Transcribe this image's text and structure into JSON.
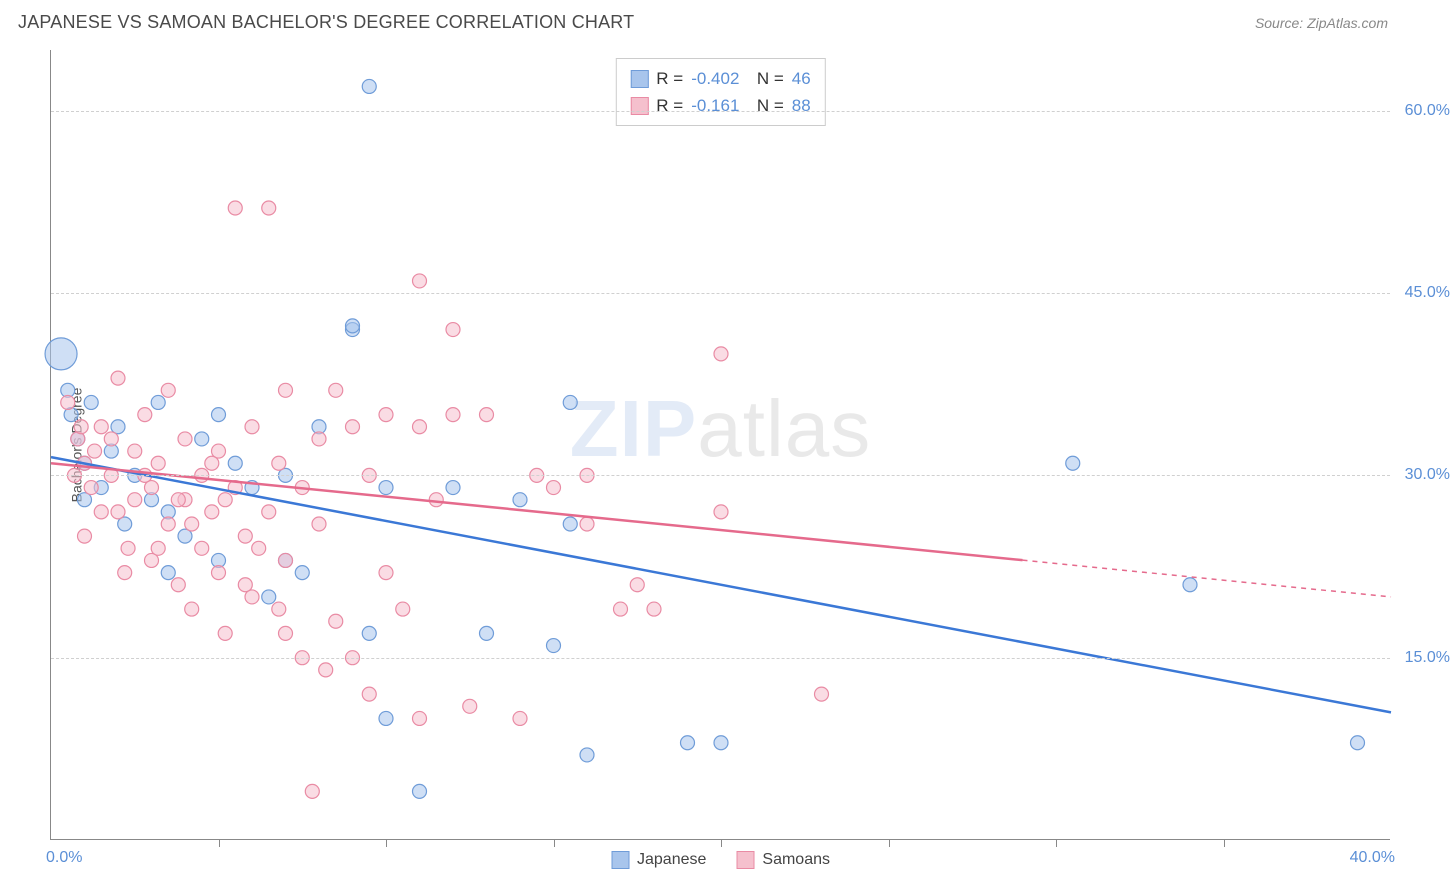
{
  "header": {
    "title": "JAPANESE VS SAMOAN BACHELOR'S DEGREE CORRELATION CHART",
    "source": "Source: ZipAtlas.com"
  },
  "chart": {
    "type": "scatter",
    "ylabel": "Bachelor's Degree",
    "xlim": [
      0,
      40
    ],
    "ylim": [
      0,
      65
    ],
    "x_start_label": "0.0%",
    "x_end_label": "40.0%",
    "x_ticks": [
      5,
      10,
      15,
      20,
      25,
      30,
      35
    ],
    "y_gridlines": [
      15,
      30,
      45,
      60
    ],
    "y_tick_labels": [
      "15.0%",
      "30.0%",
      "45.0%",
      "60.0%"
    ],
    "background_color": "#ffffff",
    "grid_color": "#d0d0d0",
    "axis_color": "#888888",
    "tick_label_color": "#5b8fd6",
    "series": [
      {
        "name": "Japanese",
        "color_fill": "#a8c5ec",
        "color_stroke": "#6f9cd8",
        "line_color": "#3b78d6",
        "R": "-0.402",
        "N": "46",
        "trend": {
          "x1": 0,
          "y1": 31.5,
          "x2": 40,
          "y2": 10.5,
          "solid_until_x": 40
        },
        "points": [
          {
            "x": 0.3,
            "y": 40,
            "r": 16
          },
          {
            "x": 0.5,
            "y": 37,
            "r": 7
          },
          {
            "x": 0.6,
            "y": 35,
            "r": 7
          },
          {
            "x": 0.8,
            "y": 33,
            "r": 7
          },
          {
            "x": 1.0,
            "y": 31,
            "r": 7
          },
          {
            "x": 1.2,
            "y": 36,
            "r": 7
          },
          {
            "x": 1.5,
            "y": 29,
            "r": 7
          },
          {
            "x": 1.8,
            "y": 32,
            "r": 7
          },
          {
            "x": 2.0,
            "y": 34,
            "r": 7
          },
          {
            "x": 2.5,
            "y": 30,
            "r": 7
          },
          {
            "x": 3.0,
            "y": 28,
            "r": 7
          },
          {
            "x": 3.2,
            "y": 36,
            "r": 7
          },
          {
            "x": 3.5,
            "y": 27,
            "r": 7
          },
          {
            "x": 4.0,
            "y": 25,
            "r": 7
          },
          {
            "x": 4.5,
            "y": 33,
            "r": 7
          },
          {
            "x": 5.0,
            "y": 23,
            "r": 7
          },
          {
            "x": 5.0,
            "y": 35,
            "r": 7
          },
          {
            "x": 5.5,
            "y": 31,
            "r": 7
          },
          {
            "x": 6.0,
            "y": 29,
            "r": 7
          },
          {
            "x": 6.5,
            "y": 20,
            "r": 7
          },
          {
            "x": 7.0,
            "y": 23,
            "r": 7
          },
          {
            "x": 7.0,
            "y": 30,
            "r": 7
          },
          {
            "x": 7.5,
            "y": 22,
            "r": 7
          },
          {
            "x": 8.0,
            "y": 34,
            "r": 7
          },
          {
            "x": 9.0,
            "y": 42,
            "r": 7
          },
          {
            "x": 9.0,
            "y": 42.3,
            "r": 7
          },
          {
            "x": 9.5,
            "y": 62,
            "r": 7
          },
          {
            "x": 9.5,
            "y": 17,
            "r": 7
          },
          {
            "x": 10.0,
            "y": 10,
            "r": 7
          },
          {
            "x": 10.0,
            "y": 29,
            "r": 7
          },
          {
            "x": 11.0,
            "y": 4,
            "r": 7
          },
          {
            "x": 12.0,
            "y": 29,
            "r": 7
          },
          {
            "x": 13.0,
            "y": 17,
            "r": 7
          },
          {
            "x": 14.0,
            "y": 28,
            "r": 7
          },
          {
            "x": 15.0,
            "y": 16,
            "r": 7
          },
          {
            "x": 15.5,
            "y": 36,
            "r": 7
          },
          {
            "x": 15.5,
            "y": 26,
            "r": 7
          },
          {
            "x": 16.0,
            "y": 7,
            "r": 7
          },
          {
            "x": 19.0,
            "y": 8,
            "r": 7
          },
          {
            "x": 20.0,
            "y": 8,
            "r": 7
          },
          {
            "x": 30.5,
            "y": 31,
            "r": 7
          },
          {
            "x": 34.0,
            "y": 21,
            "r": 7
          },
          {
            "x": 39.0,
            "y": 8,
            "r": 7
          },
          {
            "x": 3.5,
            "y": 22,
            "r": 7
          },
          {
            "x": 2.2,
            "y": 26,
            "r": 7
          },
          {
            "x": 1.0,
            "y": 28,
            "r": 7
          }
        ]
      },
      {
        "name": "Samoans",
        "color_fill": "#f5c0cd",
        "color_stroke": "#e98ba4",
        "line_color": "#e56a8c",
        "R": "-0.161",
        "N": "88",
        "trend": {
          "x1": 0,
          "y1": 31.0,
          "x2": 40,
          "y2": 20.0,
          "solid_until_x": 29
        },
        "points": [
          {
            "x": 0.5,
            "y": 36,
            "r": 7
          },
          {
            "x": 0.8,
            "y": 33,
            "r": 7
          },
          {
            "x": 1.0,
            "y": 31,
            "r": 7
          },
          {
            "x": 1.2,
            "y": 29,
            "r": 7
          },
          {
            "x": 1.5,
            "y": 34,
            "r": 7
          },
          {
            "x": 1.8,
            "y": 30,
            "r": 7
          },
          {
            "x": 2.0,
            "y": 38,
            "r": 7
          },
          {
            "x": 2.0,
            "y": 27,
            "r": 7
          },
          {
            "x": 2.3,
            "y": 24,
            "r": 7
          },
          {
            "x": 2.5,
            "y": 32,
            "r": 7
          },
          {
            "x": 2.8,
            "y": 35,
            "r": 7
          },
          {
            "x": 3.0,
            "y": 29,
            "r": 7
          },
          {
            "x": 3.0,
            "y": 23,
            "r": 7
          },
          {
            "x": 3.2,
            "y": 31,
            "r": 7
          },
          {
            "x": 3.5,
            "y": 37,
            "r": 7
          },
          {
            "x": 3.5,
            "y": 26,
            "r": 7
          },
          {
            "x": 3.8,
            "y": 21,
            "r": 7
          },
          {
            "x": 4.0,
            "y": 33,
            "r": 7
          },
          {
            "x": 4.0,
            "y": 28,
            "r": 7
          },
          {
            "x": 4.2,
            "y": 19,
            "r": 7
          },
          {
            "x": 4.5,
            "y": 30,
            "r": 7
          },
          {
            "x": 4.5,
            "y": 24,
            "r": 7
          },
          {
            "x": 4.8,
            "y": 27,
            "r": 7
          },
          {
            "x": 5.0,
            "y": 32,
            "r": 7
          },
          {
            "x": 5.0,
            "y": 22,
            "r": 7
          },
          {
            "x": 5.2,
            "y": 17,
            "r": 7
          },
          {
            "x": 5.5,
            "y": 52,
            "r": 7
          },
          {
            "x": 5.5,
            "y": 29,
            "r": 7
          },
          {
            "x": 5.8,
            "y": 25,
            "r": 7
          },
          {
            "x": 6.0,
            "y": 34,
            "r": 7
          },
          {
            "x": 6.0,
            "y": 20,
            "r": 7
          },
          {
            "x": 6.5,
            "y": 52,
            "r": 7
          },
          {
            "x": 6.5,
            "y": 27,
            "r": 7
          },
          {
            "x": 6.8,
            "y": 31,
            "r": 7
          },
          {
            "x": 7.0,
            "y": 37,
            "r": 7
          },
          {
            "x": 7.0,
            "y": 23,
            "r": 7
          },
          {
            "x": 7.0,
            "y": 17,
            "r": 7
          },
          {
            "x": 7.5,
            "y": 15,
            "r": 7
          },
          {
            "x": 7.5,
            "y": 29,
            "r": 7
          },
          {
            "x": 7.8,
            "y": 4,
            "r": 7
          },
          {
            "x": 8.0,
            "y": 26,
            "r": 7
          },
          {
            "x": 8.0,
            "y": 33,
            "r": 7
          },
          {
            "x": 8.2,
            "y": 14,
            "r": 7
          },
          {
            "x": 8.5,
            "y": 18,
            "r": 7
          },
          {
            "x": 8.5,
            "y": 37,
            "r": 7
          },
          {
            "x": 9.0,
            "y": 15,
            "r": 7
          },
          {
            "x": 9.0,
            "y": 34,
            "r": 7
          },
          {
            "x": 9.5,
            "y": 30,
            "r": 7
          },
          {
            "x": 9.5,
            "y": 12,
            "r": 7
          },
          {
            "x": 10.0,
            "y": 35,
            "r": 7
          },
          {
            "x": 10.0,
            "y": 22,
            "r": 7
          },
          {
            "x": 10.5,
            "y": 19,
            "r": 7
          },
          {
            "x": 11.0,
            "y": 46,
            "r": 7
          },
          {
            "x": 11.0,
            "y": 34,
            "r": 7
          },
          {
            "x": 11.0,
            "y": 10,
            "r": 7
          },
          {
            "x": 11.5,
            "y": 28,
            "r": 7
          },
          {
            "x": 12.0,
            "y": 42,
            "r": 7
          },
          {
            "x": 12.0,
            "y": 35,
            "r": 7
          },
          {
            "x": 12.5,
            "y": 11,
            "r": 7
          },
          {
            "x": 13.0,
            "y": 35,
            "r": 7
          },
          {
            "x": 14.0,
            "y": 10,
            "r": 7
          },
          {
            "x": 14.5,
            "y": 30,
            "r": 7
          },
          {
            "x": 15.0,
            "y": 29,
            "r": 7
          },
          {
            "x": 16.0,
            "y": 30,
            "r": 7
          },
          {
            "x": 16.0,
            "y": 26,
            "r": 7
          },
          {
            "x": 17.0,
            "y": 19,
            "r": 7
          },
          {
            "x": 17.5,
            "y": 21,
            "r": 7
          },
          {
            "x": 18.0,
            "y": 19,
            "r": 7
          },
          {
            "x": 20.0,
            "y": 40,
            "r": 7
          },
          {
            "x": 20.0,
            "y": 27,
            "r": 7
          },
          {
            "x": 23.0,
            "y": 12,
            "r": 7
          },
          {
            "x": 1.0,
            "y": 25,
            "r": 7
          },
          {
            "x": 1.5,
            "y": 27,
            "r": 7
          },
          {
            "x": 2.2,
            "y": 22,
            "r": 7
          },
          {
            "x": 2.8,
            "y": 30,
            "r": 7
          },
          {
            "x": 3.2,
            "y": 24,
            "r": 7
          },
          {
            "x": 3.8,
            "y": 28,
            "r": 7
          },
          {
            "x": 4.2,
            "y": 26,
            "r": 7
          },
          {
            "x": 4.8,
            "y": 31,
            "r": 7
          },
          {
            "x": 5.2,
            "y": 28,
            "r": 7
          },
          {
            "x": 5.8,
            "y": 21,
            "r": 7
          },
          {
            "x": 6.2,
            "y": 24,
            "r": 7
          },
          {
            "x": 6.8,
            "y": 19,
            "r": 7
          },
          {
            "x": 1.8,
            "y": 33,
            "r": 7
          },
          {
            "x": 2.5,
            "y": 28,
            "r": 7
          },
          {
            "x": 0.7,
            "y": 30,
            "r": 7
          },
          {
            "x": 1.3,
            "y": 32,
            "r": 7
          },
          {
            "x": 0.9,
            "y": 34,
            "r": 7
          }
        ]
      }
    ],
    "legend_bottom": [
      {
        "label": "Japanese",
        "fill": "#a8c5ec",
        "stroke": "#6f9cd8"
      },
      {
        "label": "Samoans",
        "fill": "#f5c0cd",
        "stroke": "#e98ba4"
      }
    ],
    "watermark": {
      "part1": "ZIP",
      "part2": "atlas"
    }
  }
}
